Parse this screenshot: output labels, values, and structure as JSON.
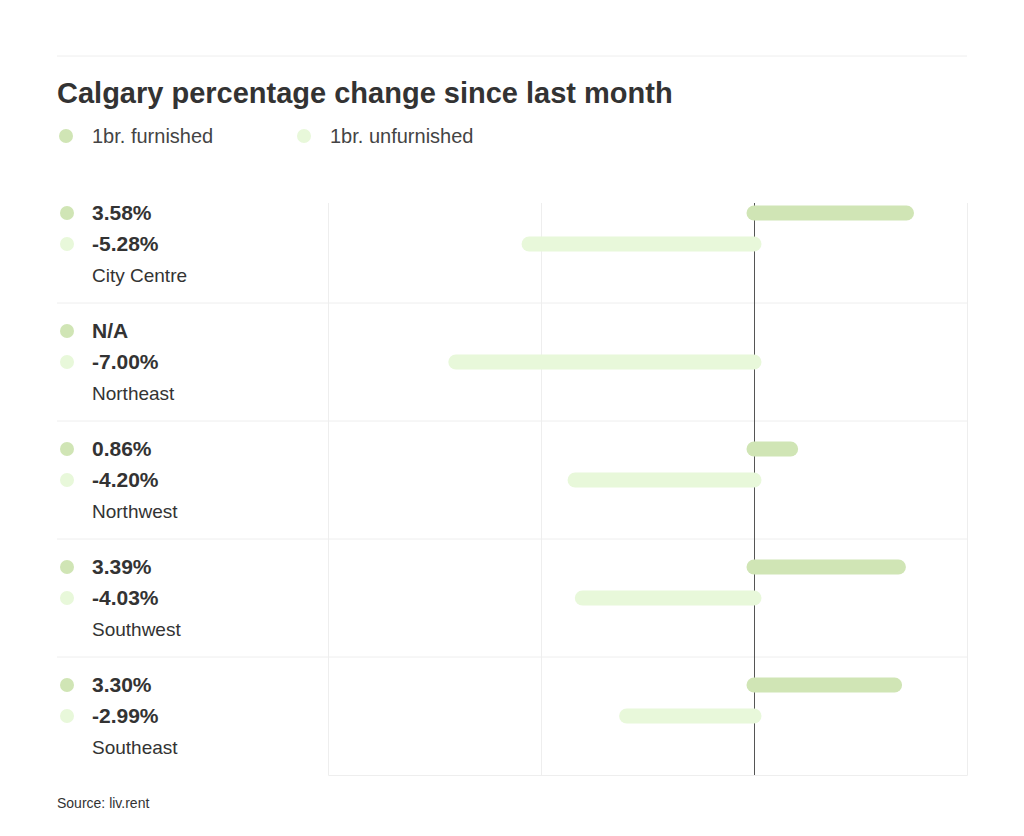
{
  "chart_data": {
    "type": "bar",
    "orientation": "horizontal",
    "title": "Calgary percentage change since last month",
    "source": "Source: liv.rent",
    "categories": [
      "City Centre",
      "Northeast",
      "Northwest",
      "Southwest",
      "Southeast"
    ],
    "series": [
      {
        "name": "1br. furnished",
        "color": "#d0e5b5",
        "values": [
          3.58,
          null,
          0.86,
          3.39,
          3.3
        ],
        "value_labels": [
          "3.58%",
          "N/A",
          "0.86%",
          "3.39%",
          "3.30%"
        ]
      },
      {
        "name": "1br. unfurnished",
        "color": "#e8f8da",
        "values": [
          -5.28,
          -7.0,
          -4.2,
          -4.03,
          -2.99
        ],
        "value_labels": [
          "-5.28%",
          "-7.00%",
          "-4.20%",
          "-4.03%",
          "-2.99%"
        ]
      }
    ],
    "xlim": [
      -10,
      5
    ],
    "xticks": [
      -10,
      -5,
      0,
      5
    ],
    "grid": true,
    "tick_labels": false,
    "data_labels": true,
    "legend": "top-left"
  }
}
